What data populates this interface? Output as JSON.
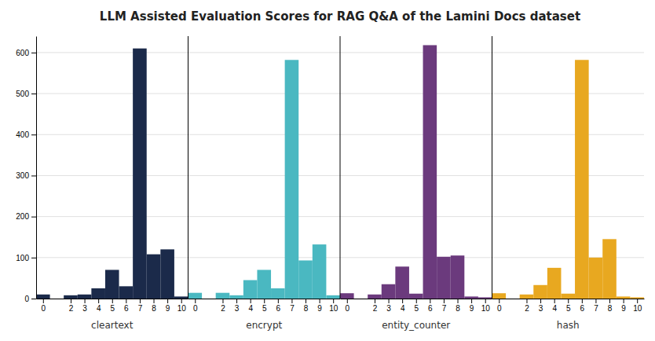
{
  "chart_data": [
    {
      "type": "bar",
      "title": "LLM Assisted Evaluation Scores for RAG Q&A of the Lamini Docs dataset",
      "xlabel": "cleartext",
      "color": "#1b2a4a",
      "x": [
        0,
        2,
        3,
        4,
        5,
        6,
        7,
        8,
        9,
        10
      ],
      "values": [
        10,
        8,
        10,
        25,
        70,
        30,
        610,
        108,
        120,
        5
      ],
      "xlim": [
        -0.5,
        10.5
      ],
      "xticks": [
        0,
        2,
        3,
        4,
        5,
        6,
        7,
        8,
        9,
        10
      ],
      "ylim": [
        0,
        640
      ],
      "yticks": [
        0,
        100,
        200,
        300,
        400,
        500,
        600
      ],
      "grid": true
    },
    {
      "type": "bar",
      "xlabel": "encrypt",
      "color": "#4ab8c1",
      "x": [
        0,
        2,
        3,
        4,
        5,
        6,
        7,
        8,
        9,
        10
      ],
      "values": [
        14,
        14,
        8,
        45,
        70,
        25,
        582,
        93,
        132,
        8
      ],
      "xlim": [
        -0.5,
        10.5
      ],
      "xticks": [
        0,
        2,
        3,
        4,
        5,
        6,
        7,
        8,
        9,
        10
      ],
      "ylim": [
        0,
        640
      ],
      "yticks": [
        0,
        100,
        200,
        300,
        400,
        500,
        600
      ],
      "grid": true,
      "tick_labels": "x"
    },
    {
      "type": "bar",
      "xlabel": "entity_counter",
      "color": "#6b3a7d",
      "x": [
        0,
        2,
        3,
        4,
        5,
        6,
        7,
        8,
        9,
        10
      ],
      "values": [
        13,
        10,
        35,
        78,
        12,
        618,
        102,
        105,
        5,
        3
      ],
      "xlim": [
        -0.5,
        10.5
      ],
      "xticks": [
        0,
        2,
        3,
        4,
        5,
        6,
        7,
        8,
        9,
        10
      ],
      "ylim": [
        0,
        640
      ],
      "yticks": [
        0,
        100,
        200,
        300,
        400,
        500,
        600
      ],
      "grid": true,
      "tick_labels": "x"
    },
    {
      "type": "bar",
      "xlabel": "hash",
      "color": "#e8a820",
      "x": [
        0,
        2,
        3,
        4,
        5,
        6,
        7,
        8,
        9,
        10
      ],
      "values": [
        13,
        10,
        33,
        75,
        12,
        582,
        100,
        145,
        5,
        3
      ],
      "xlim": [
        -0.5,
        10.5
      ],
      "xticks": [
        0,
        2,
        3,
        4,
        5,
        6,
        7,
        8,
        9,
        10
      ],
      "ylim": [
        0,
        640
      ],
      "yticks": [
        0,
        100,
        200,
        300,
        400,
        500,
        600
      ],
      "grid": true,
      "tick_labels": "x"
    }
  ]
}
